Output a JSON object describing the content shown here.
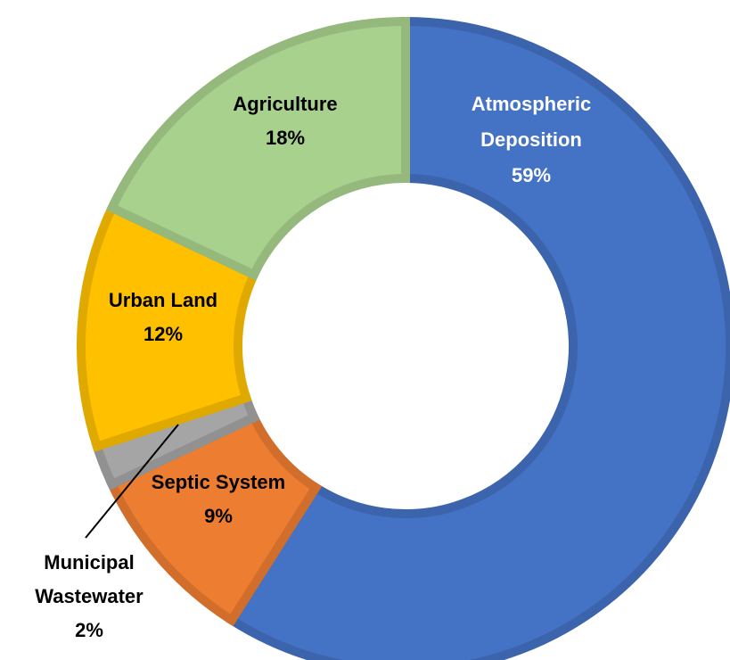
{
  "chart_data": {
    "type": "pie",
    "subtype": "donut",
    "slices": [
      {
        "name": "Atmospheric Deposition",
        "value": 59,
        "label_lines": [
          "Atmospheric",
          "Deposition",
          "59%"
        ],
        "color": "#4472C4",
        "label_color": "#ffffff"
      },
      {
        "name": "Septic System",
        "value": 9,
        "label_lines": [
          "Septic System",
          "9%"
        ],
        "color": "#ED7D31",
        "label_color": "#000000"
      },
      {
        "name": "Municipal Wastewater",
        "value": 2,
        "label_lines": [
          "Municipal",
          "Wastewater",
          "2%"
        ],
        "color": "#A5A5A5",
        "label_color": "#000000"
      },
      {
        "name": "Urban Land",
        "value": 12,
        "label_lines": [
          "Urban Land",
          "12%"
        ],
        "color": "#FFC000",
        "label_color": "#000000"
      },
      {
        "name": "Agriculture",
        "value": 18,
        "label_lines": [
          "Agriculture",
          "18%"
        ],
        "color": "#A9D18E",
        "label_color": "#000000"
      }
    ],
    "start_angle": "12 o'clock",
    "direction": "clockwise",
    "legend": "none"
  }
}
